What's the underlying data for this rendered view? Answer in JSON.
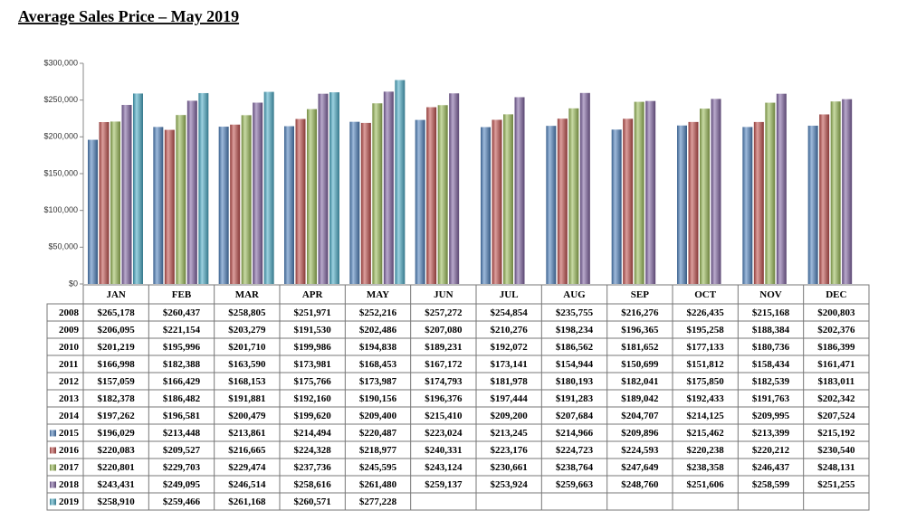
{
  "chart_data": {
    "type": "bar",
    "title": "Average Sales Price – May 2019",
    "categories": [
      "JAN",
      "FEB",
      "MAR",
      "APR",
      "MAY",
      "JUN",
      "JUL",
      "AUG",
      "SEP",
      "OCT",
      "NOV",
      "DEC"
    ],
    "ylim": [
      0,
      300000
    ],
    "yticks": [
      {
        "value": 0,
        "label": "$0"
      },
      {
        "value": 50000,
        "label": "$50,000"
      },
      {
        "value": 100000,
        "label": "$100,000"
      },
      {
        "value": 150000,
        "label": "$150,000"
      },
      {
        "value": 200000,
        "label": "$200,000"
      },
      {
        "value": 250000,
        "label": "$250,000"
      },
      {
        "value": 300000,
        "label": "$300,000"
      }
    ],
    "series": [
      {
        "name": "2008",
        "values": [
          265178,
          260437,
          258805,
          251971,
          252216,
          257272,
          254854,
          235755,
          216276,
          226435,
          215168,
          200803
        ],
        "value_labels": [
          "$265,178",
          "$260,437",
          "$258,805",
          "$251,971",
          "$252,216",
          "$257,272",
          "$254,854",
          "$235,755",
          "$216,276",
          "$226,435",
          "$215,168",
          "$200,803"
        ]
      },
      {
        "name": "2009",
        "values": [
          206095,
          221154,
          203279,
          191530,
          202486,
          207080,
          210276,
          198234,
          196365,
          195258,
          188384,
          202376
        ],
        "value_labels": [
          "$206,095",
          "$221,154",
          "$203,279",
          "$191,530",
          "$202,486",
          "$207,080",
          "$210,276",
          "$198,234",
          "$196,365",
          "$195,258",
          "$188,384",
          "$202,376"
        ]
      },
      {
        "name": "2010",
        "values": [
          201219,
          195996,
          201710,
          199986,
          194838,
          189231,
          192072,
          186562,
          181652,
          177133,
          180736,
          186399
        ],
        "value_labels": [
          "$201,219",
          "$195,996",
          "$201,710",
          "$199,986",
          "$194,838",
          "$189,231",
          "$192,072",
          "$186,562",
          "$181,652",
          "$177,133",
          "$180,736",
          "$186,399"
        ]
      },
      {
        "name": "2011",
        "values": [
          166998,
          182388,
          163590,
          173981,
          168453,
          167172,
          173141,
          154944,
          150699,
          151812,
          158434,
          161471
        ],
        "value_labels": [
          "$166,998",
          "$182,388",
          "$163,590",
          "$173,981",
          "$168,453",
          "$167,172",
          "$173,141",
          "$154,944",
          "$150,699",
          "$151,812",
          "$158,434",
          "$161,471"
        ]
      },
      {
        "name": "2012",
        "values": [
          157059,
          166429,
          168153,
          175766,
          173987,
          174793,
          181978,
          180193,
          182041,
          175850,
          182539,
          183011
        ],
        "value_labels": [
          "$157,059",
          "$166,429",
          "$168,153",
          "$175,766",
          "$173,987",
          "$174,793",
          "$181,978",
          "$180,193",
          "$182,041",
          "$175,850",
          "$182,539",
          "$183,011"
        ]
      },
      {
        "name": "2013",
        "values": [
          182378,
          186482,
          191881,
          192160,
          190156,
          196376,
          197444,
          191283,
          189042,
          192433,
          191763,
          202342
        ],
        "value_labels": [
          "$182,378",
          "$186,482",
          "$191,881",
          "$192,160",
          "$190,156",
          "$196,376",
          "$197,444",
          "$191,283",
          "$189,042",
          "$192,433",
          "$191,763",
          "$202,342"
        ]
      },
      {
        "name": "2014",
        "values": [
          197262,
          196581,
          200479,
          199620,
          209400,
          215410,
          209200,
          207684,
          204707,
          214125,
          209995,
          207524
        ],
        "value_labels": [
          "$197,262",
          "$196,581",
          "$200,479",
          "$199,620",
          "$209,400",
          "$215,410",
          "$209,200",
          "$207,684",
          "$204,707",
          "$214,125",
          "$209,995",
          "$207,524"
        ]
      },
      {
        "name": "2015",
        "color": "#4f81bd",
        "values": [
          196029,
          213448,
          213861,
          214494,
          220487,
          223024,
          213245,
          214966,
          209896,
          215462,
          213399,
          215192
        ],
        "value_labels": [
          "$196,029",
          "$213,448",
          "$213,861",
          "$214,494",
          "$220,487",
          "$223,024",
          "$213,245",
          "$214,966",
          "$209,896",
          "$215,462",
          "$213,399",
          "$215,192"
        ]
      },
      {
        "name": "2016",
        "color": "#c0504d",
        "values": [
          220083,
          209527,
          216665,
          224328,
          218977,
          240331,
          223176,
          224723,
          224593,
          220238,
          220212,
          230540
        ],
        "value_labels": [
          "$220,083",
          "$209,527",
          "$216,665",
          "$224,328",
          "$218,977",
          "$240,331",
          "$223,176",
          "$224,723",
          "$224,593",
          "$220,238",
          "$220,212",
          "$230,540"
        ]
      },
      {
        "name": "2017",
        "color": "#9bbb59",
        "values": [
          220801,
          229703,
          229474,
          237736,
          245595,
          243124,
          230661,
          238764,
          247649,
          238358,
          246437,
          248131
        ],
        "value_labels": [
          "$220,801",
          "$229,703",
          "$229,474",
          "$237,736",
          "$245,595",
          "$243,124",
          "$230,661",
          "$238,764",
          "$247,649",
          "$238,358",
          "$246,437",
          "$248,131"
        ]
      },
      {
        "name": "2018",
        "color": "#8064a2",
        "values": [
          243431,
          249095,
          246514,
          258616,
          261480,
          259137,
          253924,
          259663,
          248760,
          251606,
          258599,
          251255
        ],
        "value_labels": [
          "$243,431",
          "$249,095",
          "$246,514",
          "$258,616",
          "$261,480",
          "$259,137",
          "$253,924",
          "$259,663",
          "$248,760",
          "$251,606",
          "$258,599",
          "$251,255"
        ]
      },
      {
        "name": "2019",
        "color": "#4bacc6",
        "values": [
          258910,
          259466,
          261168,
          260571,
          277228,
          null,
          null,
          null,
          null,
          null,
          null,
          null
        ],
        "value_labels": [
          "$258,910",
          "$259,466",
          "$261,168",
          "$260,571",
          "$277,228",
          null,
          null,
          null,
          null,
          null,
          null,
          null
        ]
      }
    ]
  }
}
